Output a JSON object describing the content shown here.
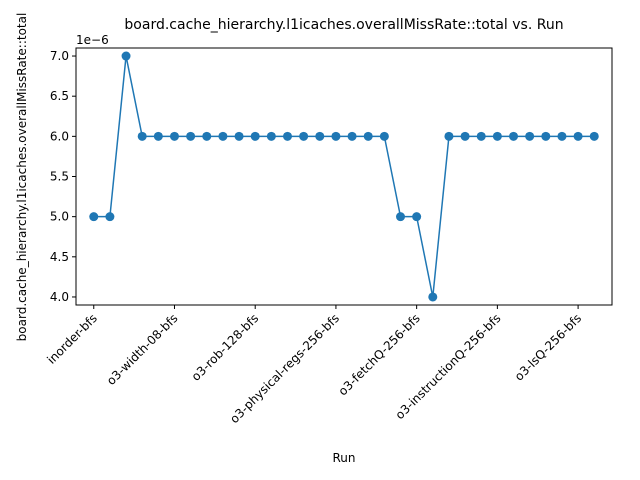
{
  "chart_data": {
    "type": "line",
    "title": "board.cache_hierarchy.l1icaches.overallMissRate::total vs. Run",
    "xlabel": "Run",
    "ylabel": "board.cache_hierarchy.l1icaches.overallMissRate::total",
    "y_offset_text": "1e−6",
    "y_multiplier": 1e-06,
    "ylim": [
      3.9,
      7.1
    ],
    "y_ticks": [
      4.0,
      4.5,
      5.0,
      5.5,
      6.0,
      6.5,
      7.0
    ],
    "y_tick_labels": [
      "4.0",
      "4.5",
      "5.0",
      "5.5",
      "6.0",
      "6.5",
      "7.0"
    ],
    "x_tick_positions": [
      0,
      5,
      10,
      15,
      20,
      25,
      30
    ],
    "x_tick_labels": [
      "inorder-bfs",
      "o3-width-08-bfs",
      "o3-rob-128-bfs",
      "o3-physical-regs-256-bfs",
      "o3-fetchQ-256-bfs",
      "o3-instructionQ-256-bfs",
      "o3-lsQ-256-bfs"
    ],
    "grid": false,
    "series": [
      {
        "color": "#1f77b4",
        "marker": "circle",
        "values": [
          5,
          5,
          7,
          6,
          6,
          6,
          6,
          6,
          6,
          6,
          6,
          6,
          6,
          6,
          6,
          6,
          6,
          6,
          6,
          5,
          5,
          4,
          6,
          6,
          6,
          6,
          6,
          6,
          6,
          6,
          6,
          6
        ]
      }
    ]
  }
}
